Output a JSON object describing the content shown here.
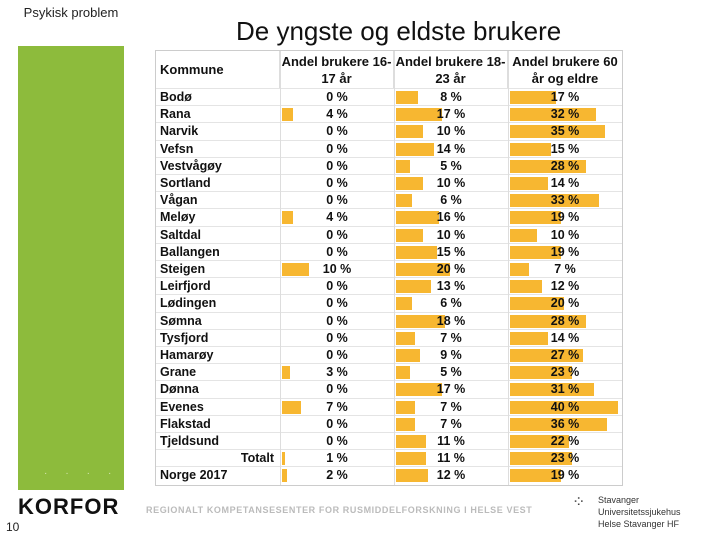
{
  "header_label": "Psykisk problem",
  "title": "De yngste og eldste brukere",
  "page_number": "10",
  "logo_text": "KORFOR",
  "footer_text": "REGIONALT KOMPETANSESENTER FOR RUSMIDDELFORSKNING I HELSE VEST",
  "partner": {
    "line1": "Stavanger Universitetssjukehus",
    "line2": "Helse Stavanger HF"
  },
  "bar_color": "#f7b731",
  "sidebar_color": "#8dbb3c",
  "table": {
    "col_headers": [
      "Kommune",
      "Andel brukere 16-17 år",
      "Andel brukere 18-23 år",
      "Andel brukere 60 år og eldre"
    ],
    "rows": [
      {
        "kommune": "Bodø",
        "a": "0 %",
        "b": "8 %",
        "c": "17 %",
        "av": 0,
        "bv": 8,
        "cv": 17
      },
      {
        "kommune": "Rana",
        "a": "4 %",
        "b": "17 %",
        "c": "32 %",
        "av": 4,
        "bv": 17,
        "cv": 32
      },
      {
        "kommune": "Narvik",
        "a": "0 %",
        "b": "10 %",
        "c": "35 %",
        "av": 0,
        "bv": 10,
        "cv": 35
      },
      {
        "kommune": "Vefsn",
        "a": "0 %",
        "b": "14 %",
        "c": "15 %",
        "av": 0,
        "bv": 14,
        "cv": 15
      },
      {
        "kommune": "Vestvågøy",
        "a": "0 %",
        "b": "5 %",
        "c": "28 %",
        "av": 0,
        "bv": 5,
        "cv": 28
      },
      {
        "kommune": "Sortland",
        "a": "0 %",
        "b": "10 %",
        "c": "14 %",
        "av": 0,
        "bv": 10,
        "cv": 14
      },
      {
        "kommune": "Vågan",
        "a": "0 %",
        "b": "6 %",
        "c": "33 %",
        "av": 0,
        "bv": 6,
        "cv": 33
      },
      {
        "kommune": "Meløy",
        "a": "4 %",
        "b": "16 %",
        "c": "19 %",
        "av": 4,
        "bv": 16,
        "cv": 19
      },
      {
        "kommune": "Saltdal",
        "a": "0 %",
        "b": "10 %",
        "c": "10 %",
        "av": 0,
        "bv": 10,
        "cv": 10
      },
      {
        "kommune": "Ballangen",
        "a": "0 %",
        "b": "15 %",
        "c": "19 %",
        "av": 0,
        "bv": 15,
        "cv": 19
      },
      {
        "kommune": "Steigen",
        "a": "10 %",
        "b": "20 %",
        "c": "7 %",
        "av": 10,
        "bv": 20,
        "cv": 7
      },
      {
        "kommune": "Leirfjord",
        "a": "0 %",
        "b": "13 %",
        "c": "12 %",
        "av": 0,
        "bv": 13,
        "cv": 12
      },
      {
        "kommune": "Lødingen",
        "a": "0 %",
        "b": "6 %",
        "c": "20 %",
        "av": 0,
        "bv": 6,
        "cv": 20
      },
      {
        "kommune": "Sømna",
        "a": "0 %",
        "b": "18 %",
        "c": "28 %",
        "av": 0,
        "bv": 18,
        "cv": 28
      },
      {
        "kommune": "Tysfjord",
        "a": "0 %",
        "b": "7 %",
        "c": "14 %",
        "av": 0,
        "bv": 7,
        "cv": 14
      },
      {
        "kommune": "Hamarøy",
        "a": "0 %",
        "b": "9 %",
        "c": "27 %",
        "av": 0,
        "bv": 9,
        "cv": 27
      },
      {
        "kommune": "Grane",
        "a": "3 %",
        "b": "5 %",
        "c": "23 %",
        "av": 3,
        "bv": 5,
        "cv": 23
      },
      {
        "kommune": "Dønna",
        "a": "0 %",
        "b": "17 %",
        "c": "31 %",
        "av": 0,
        "bv": 17,
        "cv": 31
      },
      {
        "kommune": "Evenes",
        "a": "7 %",
        "b": "7 %",
        "c": "40 %",
        "av": 7,
        "bv": 7,
        "cv": 40
      },
      {
        "kommune": "Flakstad",
        "a": "0 %",
        "b": "7 %",
        "c": "36 %",
        "av": 0,
        "bv": 7,
        "cv": 36
      },
      {
        "kommune": "Tjeldsund",
        "a": "0 %",
        "b": "11 %",
        "c": "22 %",
        "av": 0,
        "bv": 11,
        "cv": 22
      },
      {
        "kommune": "Totalt",
        "a": "1 %",
        "b": "11 %",
        "c": "23 %",
        "av": 1,
        "bv": 11,
        "cv": 23,
        "total": true
      },
      {
        "kommune": "Norge 2017",
        "a": "2 %",
        "b": "12 %",
        "c": "19 %",
        "av": 2,
        "bv": 12,
        "cv": 19
      }
    ]
  }
}
